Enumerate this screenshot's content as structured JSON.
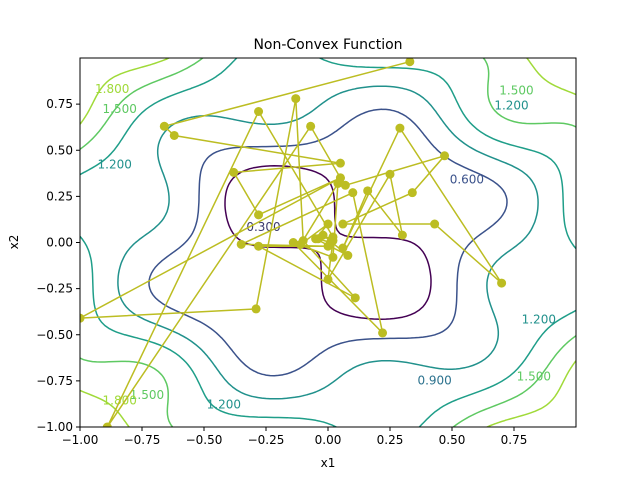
{
  "chart_data": {
    "type": "contour+line",
    "title": "Non-Convex Function",
    "xlabel": "x1",
    "ylabel": "x2",
    "xlim": [
      -1.0,
      1.0
    ],
    "ylim": [
      -1.0,
      1.0
    ],
    "x_ticks": [
      -1.0,
      -0.75,
      -0.5,
      -0.25,
      0.0,
      0.25,
      0.5,
      0.75
    ],
    "y_ticks": [
      -1.0,
      -0.75,
      -0.5,
      -0.25,
      0.0,
      0.25,
      0.5,
      0.75
    ],
    "x_tick_labels": [
      "−1.00",
      "−0.75",
      "−0.50",
      "−0.25",
      "0.00",
      "0.25",
      "0.50",
      "0.75"
    ],
    "y_tick_labels": [
      "−1.00",
      "−0.75",
      "−0.50",
      "−0.25",
      "0.00",
      "0.25",
      "0.50",
      "0.75"
    ],
    "grid": false,
    "contour_levels": [
      0.3,
      0.6,
      0.9,
      1.2,
      1.5,
      1.8
    ],
    "contour_colors": [
      "#440154",
      "#3b528b",
      "#21918c",
      "#1f9e89",
      "#5ec962",
      "#a0da39"
    ],
    "contour_labels": [
      {
        "text": "0.300",
        "x": -0.26,
        "y": 0.08,
        "color": "#3b3a6e"
      },
      {
        "text": "0.600",
        "x": 0.56,
        "y": 0.34,
        "color": "#3b528b"
      },
      {
        "text": "0.900",
        "x": 0.43,
        "y": -0.75,
        "color": "#2c728e"
      },
      {
        "text": "1.200",
        "x": -0.86,
        "y": 0.42,
        "color": "#21918c"
      },
      {
        "text": "1.200",
        "x": 0.74,
        "y": 0.74,
        "color": "#21918c"
      },
      {
        "text": "1.200",
        "x": 0.85,
        "y": -0.42,
        "color": "#21918c"
      },
      {
        "text": "1.200",
        "x": -0.42,
        "y": -0.88,
        "color": "#21918c"
      },
      {
        "text": "1.500",
        "x": -0.84,
        "y": 0.72,
        "color": "#5ec962"
      },
      {
        "text": "1.500",
        "x": 0.76,
        "y": 0.82,
        "color": "#5ec962"
      },
      {
        "text": "1.500",
        "x": 0.83,
        "y": -0.73,
        "color": "#5ec962"
      },
      {
        "text": "1.500",
        "x": -0.73,
        "y": -0.83,
        "color": "#5ec962"
      },
      {
        "text": "1.800",
        "x": -0.87,
        "y": 0.83,
        "color": "#a0da39"
      },
      {
        "text": "1.800",
        "x": -0.84,
        "y": -0.86,
        "color": "#a0da39"
      }
    ],
    "path_color": "#bcbd22",
    "path": [
      [
        0.33,
        0.98
      ],
      [
        -0.66,
        0.63
      ],
      [
        -0.62,
        0.58
      ],
      [
        0.05,
        0.43
      ],
      [
        -0.38,
        0.38
      ],
      [
        -0.28,
        0.15
      ],
      [
        0.05,
        0.35
      ],
      [
        0.07,
        0.31
      ],
      [
        0.47,
        0.47
      ],
      [
        0.34,
        0.27
      ],
      [
        0.06,
        0.1
      ],
      [
        0.43,
        0.1
      ],
      [
        0.7,
        -0.22
      ],
      [
        0.29,
        0.62
      ],
      [
        0.06,
        -0.03
      ],
      [
        0.16,
        0.28
      ],
      [
        0.3,
        0.04
      ],
      [
        0.25,
        0.37
      ],
      [
        0.0,
        -0.2
      ],
      [
        0.02,
        0.01
      ],
      [
        -0.02,
        0.04
      ],
      [
        0.08,
        -0.07
      ],
      [
        -0.05,
        0.02
      ],
      [
        0.0,
        0.1
      ],
      [
        -0.11,
        -0.01
      ],
      [
        0.04,
        0.32
      ],
      [
        0.02,
        -0.08
      ],
      [
        -0.14,
        0.0
      ],
      [
        0.22,
        -0.49
      ],
      [
        0.1,
        0.27
      ],
      [
        -0.35,
        -0.01
      ],
      [
        0.0,
        -0.02
      ],
      [
        -0.28,
        -0.02
      ],
      [
        0.11,
        -0.3
      ],
      [
        -0.1,
        0.01
      ],
      [
        -0.13,
        0.78
      ],
      [
        -0.29,
        -0.36
      ],
      [
        -1.0,
        -0.41
      ],
      [
        0.05,
        0.35
      ],
      [
        -0.07,
        0.63
      ],
      [
        -0.89,
        -1.0
      ],
      [
        -0.28,
        0.71
      ],
      [
        0.02,
        0.03
      ],
      [
        -0.04,
        0.02
      ],
      [
        0.01,
        0.0
      ]
    ]
  }
}
